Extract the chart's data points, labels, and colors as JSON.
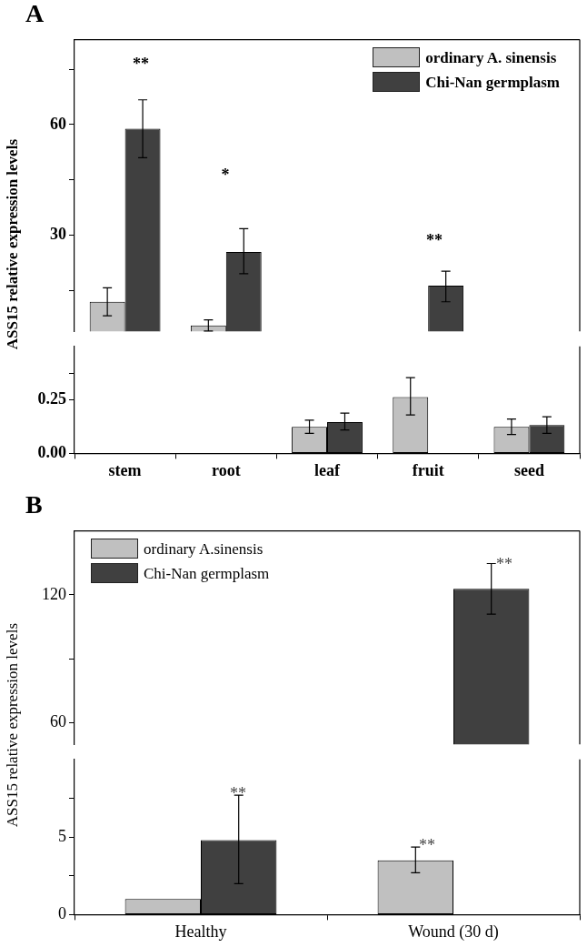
{
  "chart_data": [
    {
      "type": "bar",
      "title": "A",
      "categories": [
        null,
        null,
        null,
        null,
        null
      ],
      "series": [
        {
          "name": "ordinary A. sinensis",
          "color": "#c0c0c0",
          "values": [
            12.0,
            5.6,
            null,
            null,
            null
          ],
          "errors": [
            [
              8.2,
              15.8
            ],
            [
              4.1,
              7.1
            ],
            null,
            null,
            null
          ]
        },
        {
          "name": "Chi-Nan germplasm",
          "color": "#404040",
          "values": [
            58.9,
            25.5,
            null,
            16.4,
            null
          ],
          "errors": [
            [
              51.0,
              66.7
            ],
            [
              19.6,
              31.8
            ],
            null,
            [
              12.0,
              20.3
            ],
            null
          ]
        }
      ],
      "ylim": [
        4,
        83
      ],
      "yticks": [
        {
          "value": 15,
          "label": null
        },
        30,
        {
          "value": 45,
          "label": null
        },
        60,
        {
          "value": 75,
          "label": null
        }
      ],
      "tick_labels": "y",
      "grid": false,
      "legend": "top right",
      "annotations": [
        "**",
        "*",
        "**"
      ]
    },
    {
      "type": "bar",
      "categories": [
        "stem",
        "root",
        "leaf",
        "fruit",
        "seed"
      ],
      "ylabel": "ASS15 relative expression levels",
      "series": [
        {
          "color": "#c0c0c0",
          "values": [
            null,
            null,
            0.124,
            0.263,
            0.124
          ],
          "errors": [
            null,
            null,
            [
              0.094,
              0.155
            ],
            [
              0.18,
              0.354
            ],
            [
              0.088,
              0.161
            ]
          ]
        },
        {
          "color": "#404040",
          "values": [
            null,
            null,
            0.146,
            null,
            0.132
          ],
          "errors": [
            null,
            null,
            [
              0.11,
              0.188
            ],
            null,
            [
              0.094,
              0.171
            ]
          ]
        }
      ],
      "ylim": [
        0,
        0.5
      ],
      "yticks": [
        {
          "value": 0,
          "label": "0.00"
        },
        {
          "value": 0.25,
          "label": "0.25"
        },
        {
          "value": 0.375,
          "label": null
        }
      ],
      "grid": false
    },
    {
      "type": "bar",
      "title": "B",
      "categories": [
        null,
        null
      ],
      "series": [
        {
          "name": "ordinary A.sinensis",
          "color": "#c0c0c0",
          "values": [
            null,
            null
          ]
        },
        {
          "name": "Chi-Nan germplasm",
          "color": "#404040",
          "values": [
            null,
            122.9
          ],
          "errors": [
            null,
            [
              111,
              134.7
            ]
          ]
        }
      ],
      "ylim": [
        50,
        150
      ],
      "yticks": [
        60,
        {
          "value": 90,
          "label": null
        },
        120
      ],
      "tick_labels": "y",
      "grid": false,
      "legend": "top left",
      "annotations": [
        "**"
      ]
    },
    {
      "type": "bar",
      "categories": [
        "Healthy",
        "Wound (30 d)"
      ],
      "ylabel": "ASS15 relative expression levels",
      "series": [
        {
          "color": "#c0c0c0",
          "values": [
            1.0,
            3.5
          ],
          "errors": [
            null,
            [
              2.7,
              4.35
            ]
          ]
        },
        {
          "color": "#404040",
          "values": [
            4.8,
            null
          ],
          "errors": [
            [
              2.0,
              7.7
            ],
            null
          ]
        }
      ],
      "ylim": [
        0,
        10
      ],
      "yticks": [
        0,
        {
          "value": 2.5,
          "label": null
        },
        5,
        {
          "value": 7.5,
          "label": null
        }
      ],
      "grid": false,
      "annotations": [
        "**",
        "**"
      ]
    }
  ]
}
